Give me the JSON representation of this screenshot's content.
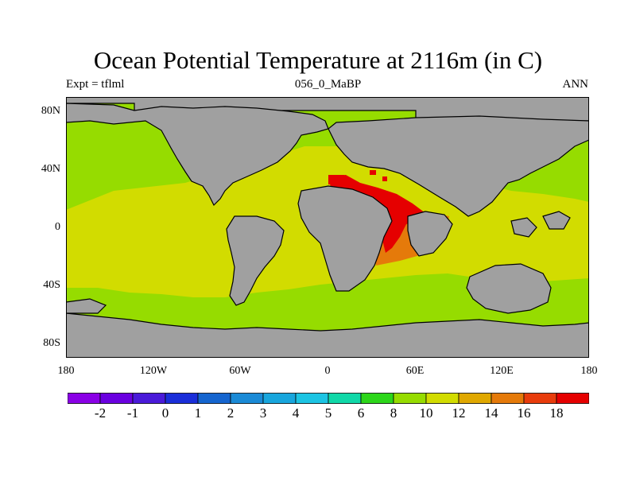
{
  "title": "Ocean Potential Temperature at 2116m (in C)",
  "subtitle_left": "Expt = tflml",
  "subtitle_center": "056_0_MaBP",
  "subtitle_right": "ANN",
  "y_ticks": [
    "80N",
    "40N",
    "0",
    "40S",
    "80S"
  ],
  "x_ticks": [
    "180",
    "120W",
    "60W",
    "0",
    "60E",
    "120E",
    "180"
  ],
  "colorbar": {
    "labels": [
      "-2",
      "-1",
      "0",
      "1",
      "2",
      "3",
      "4",
      "5",
      "6",
      "8",
      "10",
      "12",
      "14",
      "16",
      "18"
    ],
    "colors": [
      "#8a00e6",
      "#6a00e0",
      "#4a1ad9",
      "#1a2ed9",
      "#1565cf",
      "#1a8ad6",
      "#18a6dd",
      "#1cc4e3",
      "#10d8a8",
      "#2cd61a",
      "#96dc00",
      "#d2dc00",
      "#e0a800",
      "#e57a0a",
      "#e83c0c",
      "#e50000"
    ]
  },
  "map_colors": {
    "land": "#a0a0a0",
    "cold": "#96dc00",
    "mild": "#d2dc00",
    "warm": "#e57a0a",
    "hot": "#e50000",
    "coast": "#000000"
  }
}
